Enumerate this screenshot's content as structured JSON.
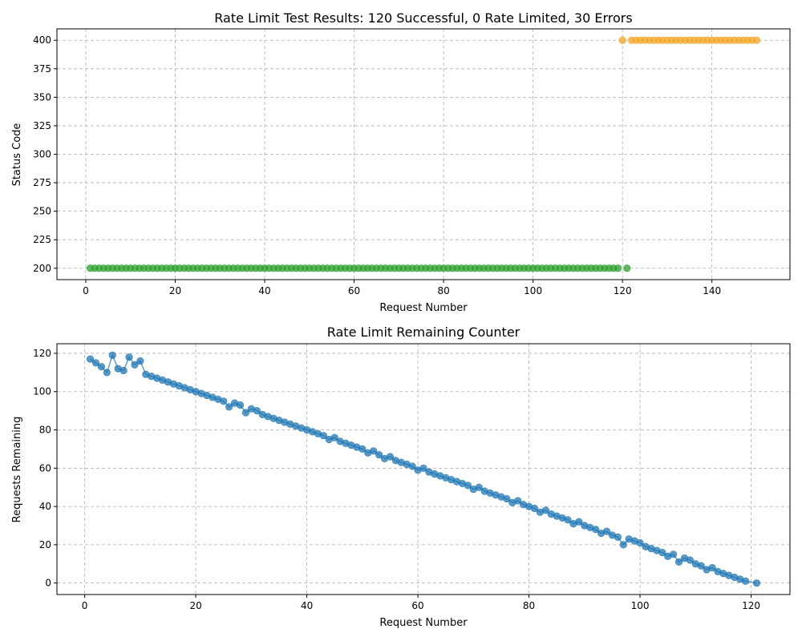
{
  "chart_data": [
    {
      "type": "scatter",
      "title": "Rate Limit Test Results: 120 Successful, 0 Rate Limited, 30 Errors",
      "xlabel": "Request Number",
      "ylabel": "Status Code",
      "xlim": [
        -6.45,
        157.45
      ],
      "ylim": [
        190,
        410
      ],
      "xticks": [
        0,
        20,
        40,
        60,
        80,
        100,
        120,
        140
      ],
      "yticks": [
        200,
        225,
        250,
        275,
        300,
        325,
        350,
        375,
        400
      ],
      "grid": true,
      "series": [
        {
          "status": 200,
          "color": "#2ca02c",
          "x": [
            1,
            2,
            3,
            4,
            5,
            6,
            7,
            8,
            9,
            10,
            11,
            12,
            13,
            14,
            15,
            16,
            17,
            18,
            19,
            20,
            21,
            22,
            23,
            24,
            25,
            26,
            27,
            28,
            29,
            30,
            31,
            32,
            33,
            34,
            35,
            36,
            37,
            38,
            39,
            40,
            41,
            42,
            43,
            44,
            45,
            46,
            47,
            48,
            49,
            50,
            51,
            52,
            53,
            54,
            55,
            56,
            57,
            58,
            59,
            60,
            61,
            62,
            63,
            64,
            65,
            66,
            67,
            68,
            69,
            70,
            71,
            72,
            73,
            74,
            75,
            76,
            77,
            78,
            79,
            80,
            81,
            82,
            83,
            84,
            85,
            86,
            87,
            88,
            89,
            90,
            91,
            92,
            93,
            94,
            95,
            96,
            97,
            98,
            99,
            100,
            101,
            102,
            103,
            104,
            105,
            106,
            107,
            108,
            109,
            110,
            111,
            112,
            113,
            114,
            115,
            116,
            117,
            118,
            119,
            121
          ]
        },
        {
          "status": 400,
          "color": "#f5a623",
          "x": [
            120,
            122,
            123,
            124,
            125,
            126,
            127,
            128,
            129,
            130,
            131,
            132,
            133,
            134,
            135,
            136,
            137,
            138,
            139,
            140,
            141,
            142,
            143,
            144,
            145,
            146,
            147,
            148,
            149,
            150
          ]
        }
      ]
    },
    {
      "type": "line",
      "title": "Rate Limit Remaining Counter",
      "xlabel": "Request Number",
      "ylabel": "Requests Remaining",
      "xlim": [
        -5,
        127
      ],
      "ylim": [
        -6,
        125
      ],
      "xticks": [
        0,
        20,
        40,
        60,
        80,
        100,
        120
      ],
      "yticks": [
        0,
        20,
        40,
        60,
        80,
        100,
        120
      ],
      "grid": true,
      "color": "#1f77b4",
      "series": [
        {
          "x": [
            1,
            2,
            3,
            4,
            5,
            6,
            7,
            8,
            9,
            10,
            11,
            12,
            13,
            14,
            15,
            16,
            17,
            18,
            19,
            20,
            21,
            22,
            23,
            24,
            25,
            26,
            27,
            28,
            29,
            30,
            31,
            32,
            33,
            34,
            35,
            36,
            37,
            38,
            39,
            40,
            41,
            42,
            43,
            44,
            45,
            46,
            47,
            48,
            49,
            50,
            51,
            52,
            53,
            54,
            55,
            56,
            57,
            58,
            59,
            60,
            61,
            62,
            63,
            64,
            65,
            66,
            67,
            68,
            69,
            70,
            71,
            72,
            73,
            74,
            75,
            76,
            77,
            78,
            79,
            80,
            81,
            82,
            83,
            84,
            85,
            86,
            87,
            88,
            89,
            90,
            91,
            92,
            93,
            94,
            95,
            96,
            97,
            98,
            99,
            100,
            101,
            102,
            103,
            104,
            105,
            106,
            107,
            108,
            109,
            110,
            111,
            112,
            113,
            114,
            115,
            116,
            117,
            118,
            119,
            121
          ],
          "values": [
            117,
            115,
            113,
            110,
            119,
            112,
            111,
            118,
            114,
            116,
            109,
            108,
            107,
            106,
            105,
            104,
            103,
            102,
            101,
            100,
            99,
            98,
            97,
            96,
            95,
            92,
            94,
            93,
            89,
            91,
            90,
            88,
            87,
            86,
            85,
            84,
            83,
            82,
            81,
            80,
            79,
            78,
            77,
            75,
            76,
            74,
            73,
            72,
            71,
            70,
            68,
            69,
            67,
            65,
            66,
            64,
            63,
            62,
            61,
            59,
            60,
            58,
            57,
            56,
            55,
            54,
            53,
            52,
            51,
            49,
            50,
            48,
            47,
            46,
            45,
            44,
            42,
            43,
            41,
            40,
            39,
            37,
            38,
            36,
            35,
            34,
            33,
            31,
            32,
            30,
            29,
            28,
            26,
            27,
            25,
            24,
            20,
            23,
            22,
            21,
            19,
            18,
            17,
            16,
            14,
            15,
            11,
            13,
            12,
            10,
            9,
            7,
            8,
            6,
            5,
            4,
            3,
            2,
            1,
            0
          ]
        }
      ]
    }
  ]
}
